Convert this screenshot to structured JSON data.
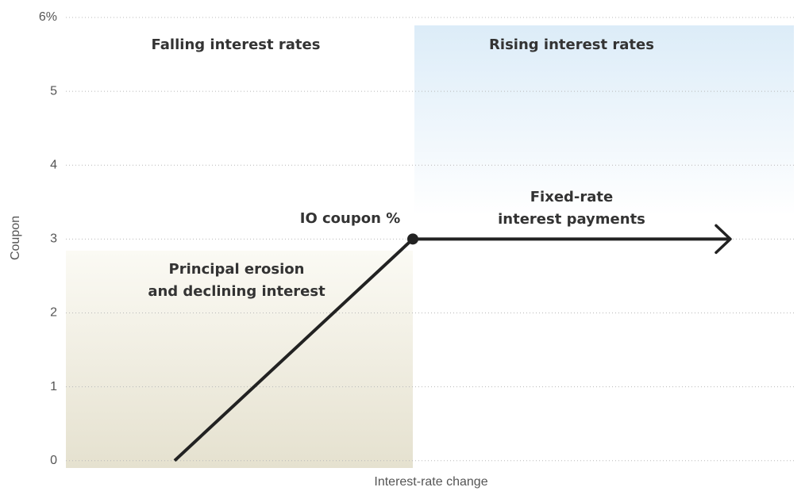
{
  "chart_data": {
    "type": "line",
    "x_label": "Interest-rate change",
    "y_label": "Coupon",
    "x": [
      -3,
      0,
      4
    ],
    "values": [
      0,
      3,
      3
    ],
    "color": "#222222",
    "xlim": [
      -4.37,
      4.8
    ],
    "ylim": [
      -0.1,
      6
    ],
    "yticks": [
      0,
      1,
      2,
      3,
      4,
      {
        "value": 5,
        "label": "5"
      },
      {
        "value": 6,
        "label": "6%"
      }
    ],
    "grid": true,
    "annotations": {
      "falling": [
        "Falling interest rates"
      ],
      "rising": [
        "Rising interest rates"
      ],
      "point": [
        "IO coupon %"
      ],
      "left": [
        "Principal erosion",
        "and declining interest"
      ],
      "right": [
        "Fixed-rate",
        "interest payments"
      ]
    }
  }
}
